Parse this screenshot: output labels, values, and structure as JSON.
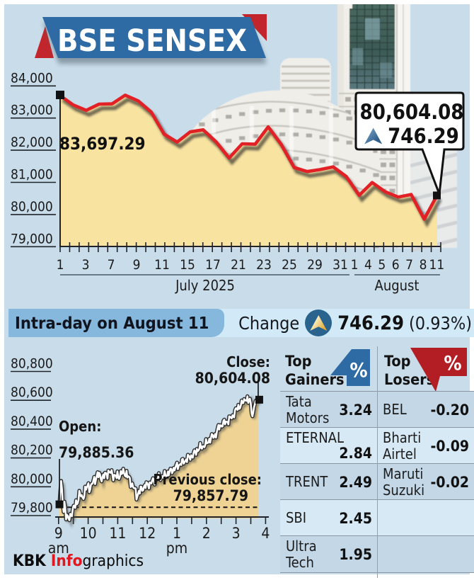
{
  "banner": {
    "title": "BSE SENSEX"
  },
  "band": {
    "title": "Intra-day on August 11",
    "change_label": "Change",
    "change_value": "746.29",
    "change_pct": "(0.93%)"
  },
  "main_chart": {
    "start_label": "83,697.29",
    "callout_value": "80,604.08",
    "callout_change": "746.29",
    "month_left": "July 2025",
    "month_right": "August"
  },
  "intraday": {
    "open_label": "Open:",
    "open_value": "79,885.36",
    "close_label": "Close:",
    "close_value": "80,604.08",
    "prev_label": "Previous close:",
    "prev_value": "79,857.79"
  },
  "tables": {
    "gainers": {
      "title": "Top Gainers",
      "pct": "%",
      "rows": [
        {
          "name": "Tata Motors",
          "value": "3.24"
        },
        {
          "name": "ETERNAL",
          "value": "2.84"
        },
        {
          "name": "TRENT",
          "value": "2.49"
        },
        {
          "name": "SBI",
          "value": "2.45"
        },
        {
          "name": "Ultra Tech",
          "value": "1.95"
        }
      ]
    },
    "losers": {
      "title": "Top Losers",
      "pct": "%",
      "rows": [
        {
          "name": "BEL",
          "value": "-0.20"
        },
        {
          "name": "Bharti Airtel",
          "value": "-0.09"
        },
        {
          "name": "Maruti Suzuki",
          "value": "-0.02"
        },
        {
          "name": "",
          "value": ""
        },
        {
          "name": "",
          "value": ""
        }
      ]
    }
  },
  "footer": {
    "kbk": "KBK ",
    "info": "Info",
    "graphics": "graphics"
  },
  "chart_data": [
    {
      "type": "area",
      "title": "BSE SENSEX daily close, July 1 - August 11, 2025",
      "x": [
        "Jul 1",
        "Jul 2",
        "Jul 3",
        "Jul 4",
        "Jul 7",
        "Jul 8",
        "Jul 9",
        "Jul 10",
        "Jul 11",
        "Jul 14",
        "Jul 15",
        "Jul 16",
        "Jul 17",
        "Jul 18",
        "Jul 21",
        "Jul 22",
        "Jul 23",
        "Jul 24",
        "Jul 25",
        "Jul 28",
        "Jul 29",
        "Jul 30",
        "Jul 31",
        "Aug 1",
        "Aug 4",
        "Aug 5",
        "Aug 6",
        "Aug 7",
        "Aug 8",
        "Aug 11"
      ],
      "values": [
        83697.29,
        83409.69,
        83239.47,
        83432.89,
        83442.5,
        83712.51,
        83536.08,
        83190.28,
        82500.47,
        82253.46,
        82570.91,
        82634.48,
        82259.24,
        81757.73,
        82200.34,
        82186.81,
        82726.64,
        82184.17,
        81463.09,
        81337.95,
        81397.69,
        81481.86,
        81185.58,
        80599.91,
        80995.84,
        80710.25,
        80543.99,
        80623.26,
        79857.79,
        80604.08
      ],
      "ylim": [
        79000,
        84000
      ],
      "y_tick_labels": [
        "84,000",
        "83,000",
        "82,000",
        "81,000",
        "80,000",
        "79,000"
      ],
      "y_tick_values": [
        84000,
        83000,
        82000,
        81000,
        80000,
        79000
      ],
      "x_tick_labels_july": [
        "1",
        "3",
        "7",
        "9",
        "11",
        "15",
        "17",
        "21",
        "23",
        "25",
        "29",
        "31"
      ],
      "x_tick_labels_august": [
        "1",
        "4",
        "5",
        "6",
        "7",
        "8",
        "11"
      ],
      "first_point_label": "83,697.29",
      "last_point_label": "80,604.08",
      "last_point_change": "746.29"
    },
    {
      "type": "area",
      "title": "BSE SENSEX intra-day on August 11",
      "open": 79885.36,
      "close": 80604.08,
      "previous_close": 79857.79,
      "ylim": [
        79800,
        80800
      ],
      "y_tick_labels": [
        "80,800",
        "80,600",
        "80,400",
        "80,200",
        "80,000",
        "79,800"
      ],
      "y_tick_values": [
        80800,
        80600,
        80400,
        80200,
        80000,
        79800
      ],
      "x_tick_labels": [
        "9",
        "10",
        "11",
        "12",
        "1",
        "2",
        "3",
        "4"
      ],
      "x_tick_sub_labels": [
        "am",
        "",
        "",
        "",
        "pm",
        "",
        "",
        ""
      ],
      "points": [
        [
          9.03,
          79885.36
        ],
        [
          9.058,
          79969
        ],
        [
          9.086,
          80041
        ],
        [
          9.114,
          79984
        ],
        [
          9.142,
          79879
        ],
        [
          9.17,
          79825
        ],
        [
          9.198,
          79897
        ],
        [
          9.226,
          79854
        ],
        [
          9.254,
          79773
        ],
        [
          9.282,
          79806
        ],
        [
          9.31,
          79797
        ],
        [
          9.338,
          79780
        ],
        [
          9.366,
          79768
        ],
        [
          9.394,
          79813
        ],
        [
          9.422,
          79801
        ],
        [
          9.45,
          79795
        ],
        [
          9.478,
          79845
        ],
        [
          9.506,
          79869
        ],
        [
          9.534,
          79870
        ],
        [
          9.562,
          79853
        ],
        [
          9.59,
          79907
        ],
        [
          9.618,
          79878
        ],
        [
          9.646,
          79885
        ],
        [
          9.674,
          79908
        ],
        [
          9.702,
          79972
        ],
        [
          9.73,
          79947
        ],
        [
          9.758,
          79933
        ],
        [
          9.786,
          79942
        ],
        [
          9.814,
          79925
        ],
        [
          9.842,
          79915
        ],
        [
          9.87,
          79933
        ],
        [
          9.898,
          80001
        ],
        [
          9.926,
          79979
        ],
        [
          9.954,
          79998
        ],
        [
          9.982,
          80008
        ],
        [
          10.01,
          80025
        ],
        [
          10.038,
          79962
        ],
        [
          10.066,
          79978
        ],
        [
          10.094,
          80013
        ],
        [
          10.122,
          80022
        ],
        [
          10.15,
          80021
        ],
        [
          10.178,
          80044
        ],
        [
          10.206,
          80069
        ],
        [
          10.234,
          80018
        ],
        [
          10.262,
          80048
        ],
        [
          10.29,
          80073
        ],
        [
          10.318,
          80101
        ],
        [
          10.346,
          80066
        ],
        [
          10.374,
          80098
        ],
        [
          10.402,
          80085
        ],
        [
          10.43,
          80051
        ],
        [
          10.458,
          80037
        ],
        [
          10.486,
          80069
        ],
        [
          10.514,
          80086
        ],
        [
          10.542,
          80059
        ],
        [
          10.57,
          80098
        ],
        [
          10.598,
          80096
        ],
        [
          10.626,
          80088
        ],
        [
          10.654,
          80056
        ],
        [
          10.682,
          80113
        ],
        [
          10.71,
          80106
        ],
        [
          10.738,
          80098
        ],
        [
          10.766,
          80097
        ],
        [
          10.794,
          80116
        ],
        [
          10.822,
          80080
        ],
        [
          10.85,
          80044
        ],
        [
          10.878,
          80083
        ],
        [
          10.906,
          80081
        ],
        [
          10.934,
          80076
        ],
        [
          10.962,
          80060
        ],
        [
          10.99,
          80107
        ],
        [
          11.018,
          80062
        ],
        [
          11.046,
          80054
        ],
        [
          11.074,
          80070
        ],
        [
          11.102,
          80109
        ],
        [
          11.13,
          80088
        ],
        [
          11.158,
          80093
        ],
        [
          11.186,
          80126
        ],
        [
          11.214,
          80096
        ],
        [
          11.242,
          80077
        ],
        [
          11.27,
          80071
        ],
        [
          11.298,
          80111
        ],
        [
          11.326,
          80064
        ],
        [
          11.354,
          80073
        ],
        [
          11.382,
          80071
        ],
        [
          11.41,
          80062
        ],
        [
          11.438,
          79998
        ],
        [
          11.466,
          80004
        ],
        [
          11.494,
          80024
        ],
        [
          11.522,
          79997
        ],
        [
          11.55,
          79990
        ],
        [
          11.578,
          79990
        ],
        [
          11.606,
          79989
        ],
        [
          11.634,
          79911
        ],
        [
          11.662,
          79931
        ],
        [
          11.69,
          79950
        ],
        [
          11.718,
          79972
        ],
        [
          11.746,
          79953
        ],
        [
          11.774,
          80002
        ],
        [
          11.802,
          79999
        ],
        [
          11.83,
          79972
        ],
        [
          11.858,
          79975
        ],
        [
          11.886,
          79999
        ],
        [
          11.914,
          80013
        ],
        [
          11.942,
          79991
        ],
        [
          11.97,
          80032
        ],
        [
          11.998,
          80026
        ],
        [
          12.026,
          80013
        ],
        [
          12.054,
          79988
        ],
        [
          12.082,
          80030
        ],
        [
          12.11,
          80026
        ],
        [
          12.138,
          80023
        ],
        [
          12.166,
          80044
        ],
        [
          12.194,
          80060
        ],
        [
          12.222,
          80040
        ],
        [
          12.25,
          80015
        ],
        [
          12.278,
          80054
        ],
        [
          12.306,
          80048
        ],
        [
          12.334,
          80055
        ],
        [
          12.362,
          80057
        ],
        [
          12.39,
          80095
        ],
        [
          12.418,
          80057
        ],
        [
          12.446,
          80046
        ],
        [
          12.474,
          80059
        ],
        [
          12.502,
          80074
        ],
        [
          12.53,
          80063
        ],
        [
          12.558,
          80073
        ],
        [
          12.586,
          80110
        ],
        [
          12.614,
          80080
        ],
        [
          12.642,
          80071
        ],
        [
          12.67,
          80071
        ],
        [
          12.698,
          80106
        ],
        [
          12.726,
          80079
        ],
        [
          12.754,
          80106
        ],
        [
          12.782,
          80126
        ],
        [
          12.81,
          80125
        ],
        [
          12.838,
          80094
        ],
        [
          12.866,
          80107
        ],
        [
          12.894,
          80132
        ],
        [
          12.922,
          80113
        ],
        [
          12.95,
          80133
        ],
        [
          12.978,
          80152
        ],
        [
          13.006,
          80168
        ],
        [
          13.034,
          80122
        ],
        [
          13.062,
          80147
        ],
        [
          13.09,
          80153
        ],
        [
          13.118,
          80158
        ],
        [
          13.146,
          80151
        ],
        [
          13.174,
          80190
        ],
        [
          13.202,
          80194
        ],
        [
          13.23,
          80160
        ],
        [
          13.258,
          80170
        ],
        [
          13.286,
          80180
        ],
        [
          13.314,
          80189
        ],
        [
          13.342,
          80171
        ],
        [
          13.37,
          80222
        ],
        [
          13.398,
          80218
        ],
        [
          13.426,
          80206
        ],
        [
          13.454,
          80187
        ],
        [
          13.482,
          80219
        ],
        [
          13.51,
          80208
        ],
        [
          13.538,
          80202
        ],
        [
          13.566,
          80238
        ],
        [
          13.594,
          80253
        ],
        [
          13.622,
          80243
        ],
        [
          13.65,
          80221
        ],
        [
          13.678,
          80263
        ],
        [
          13.706,
          80246
        ],
        [
          13.734,
          80253
        ],
        [
          13.762,
          80265
        ],
        [
          13.79,
          80304
        ],
        [
          13.818,
          80272
        ],
        [
          13.846,
          80264
        ],
        [
          13.874,
          80281
        ],
        [
          13.902,
          80281
        ],
        [
          13.93,
          80274
        ],
        [
          13.958,
          80287
        ],
        [
          13.986,
          80331
        ],
        [
          14.014,
          80301
        ],
        [
          14.042,
          80304
        ],
        [
          14.07,
          80307
        ],
        [
          14.098,
          80333
        ],
        [
          14.126,
          80306
        ],
        [
          14.154,
          80339
        ],
        [
          14.182,
          80366
        ],
        [
          14.21,
          80359
        ],
        [
          14.238,
          80339
        ],
        [
          14.266,
          80347
        ],
        [
          14.294,
          80366
        ],
        [
          14.322,
          80341
        ],
        [
          14.35,
          80378
        ],
        [
          14.378,
          80406
        ],
        [
          14.406,
          80429
        ],
        [
          14.434,
          80397
        ],
        [
          14.462,
          80427
        ],
        [
          14.49,
          80426
        ],
        [
          14.518,
          80417
        ],
        [
          14.546,
          80419
        ],
        [
          14.574,
          80457
        ],
        [
          14.602,
          80466
        ],
        [
          14.63,
          80433
        ],
        [
          14.658,
          80452
        ],
        [
          14.686,
          80451
        ],
        [
          14.714,
          80451
        ],
        [
          14.742,
          80433
        ],
        [
          14.77,
          80489
        ],
        [
          14.798,
          80487
        ],
        [
          14.826,
          80479
        ],
        [
          14.854,
          80474
        ],
        [
          14.882,
          80497
        ],
        [
          14.91,
          80485
        ],
        [
          14.938,
          80481
        ],
        [
          14.966,
          80531
        ],
        [
          14.994,
          80545
        ],
        [
          15.022,
          80545
        ],
        [
          15.05,
          80533
        ],
        [
          15.078,
          80569
        ],
        [
          15.106,
          80540
        ],
        [
          15.134,
          80544
        ],
        [
          15.162,
          80564
        ],
        [
          15.19,
          80599
        ],
        [
          15.218,
          80580
        ],
        [
          15.246,
          80581
        ],
        [
          15.274,
          80609
        ],
        [
          15.302,
          80599
        ],
        [
          15.33,
          80599
        ],
        [
          15.358,
          80596
        ],
        [
          15.386,
          80628
        ],
        [
          15.414,
          80582
        ],
        [
          15.442,
          80597
        ],
        [
          15.47,
          80612
        ],
        [
          15.498,
          80582
        ],
        [
          15.526,
          80509
        ],
        [
          15.554,
          80489
        ],
        [
          15.582,
          80514
        ],
        [
          15.61,
          80551
        ],
        [
          15.638,
          80574
        ],
        [
          15.666,
          80597
        ],
        [
          15.694,
          80603
        ],
        [
          15.722,
          80598
        ],
        [
          15.75,
          80604.08
        ]
      ]
    }
  ]
}
